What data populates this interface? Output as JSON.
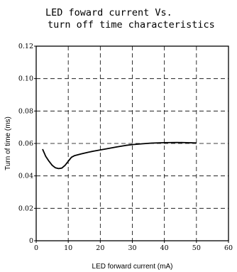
{
  "chart_data": {
    "type": "line",
    "title": [
      "LED foward current Vs.",
      "turn off time characteristics"
    ],
    "xlabel": "LED forward current (mA)",
    "ylabel": "Turn of time (ms)",
    "xlim": [
      0,
      60
    ],
    "ylim": [
      0,
      0.12
    ],
    "xticks": [
      "0",
      "10",
      "20",
      "30",
      "40",
      "50",
      "60"
    ],
    "yticks": [
      "0",
      "0.02",
      "0.04",
      "0.06",
      "0.08",
      "0.10",
      "0.12"
    ],
    "grid": "dashed",
    "series": [
      {
        "x": [
          2,
          3,
          4,
          5,
          6,
          7,
          8,
          9,
          10,
          11,
          12,
          14,
          16,
          18,
          20,
          22,
          25,
          28,
          30,
          33,
          36,
          40,
          44,
          47,
          50
        ],
        "y": [
          0.0565,
          0.052,
          0.049,
          0.0465,
          0.045,
          0.0445,
          0.0448,
          0.0465,
          0.049,
          0.0515,
          0.0525,
          0.0535,
          0.0545,
          0.0553,
          0.056,
          0.0567,
          0.0578,
          0.0588,
          0.0593,
          0.0598,
          0.0602,
          0.0605,
          0.0606,
          0.0605,
          0.0603
        ]
      }
    ]
  }
}
